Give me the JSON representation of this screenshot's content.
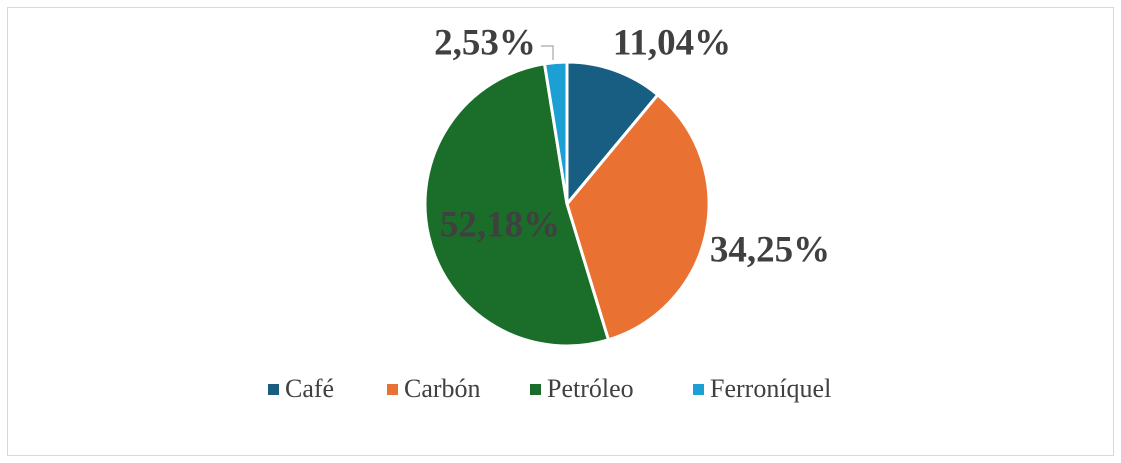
{
  "chart_data": {
    "type": "pie",
    "categories": [
      "Café",
      "Carbón",
      "Petróleo",
      "Ferroníquel"
    ],
    "values": [
      11.04,
      34.25,
      52.18,
      2.53
    ],
    "value_labels": [
      "11,04%",
      "34,25%",
      "52,18%",
      "2,53%"
    ],
    "colors": [
      "#175e82",
      "#e97132",
      "#1b6e2a",
      "#1ca0d4"
    ],
    "legend": "bottom"
  }
}
